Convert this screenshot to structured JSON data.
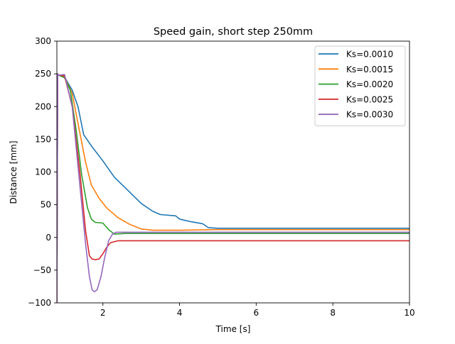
{
  "chart_data": {
    "type": "line",
    "title": "Speed gain, short step 250mm",
    "xlabel": "Time [s]",
    "ylabel": "Distance [mm]",
    "xlim": [
      0.8,
      10
    ],
    "ylim": [
      -100,
      300
    ],
    "xticks": [
      2,
      4,
      6,
      8,
      10
    ],
    "xtick_labels": [
      "2",
      "4",
      "6",
      "8",
      "10"
    ],
    "yticks": [
      -100,
      -50,
      0,
      50,
      100,
      150,
      200,
      250,
      300
    ],
    "ytick_labels": [
      "−100",
      "−50",
      "0",
      "50",
      "100",
      "150",
      "200",
      "250",
      "300"
    ],
    "grid": false,
    "legend_position": "top-right",
    "series": [
      {
        "name": "Ks=0.0010",
        "color": "#1f77b4",
        "x": [
          0.8,
          0.82,
          0.85,
          1.0,
          1.2,
          1.35,
          1.5,
          1.7,
          2.0,
          2.3,
          2.6,
          3.0,
          3.3,
          3.5,
          3.9,
          4.0,
          4.3,
          4.6,
          4.75,
          5.0,
          6.0,
          7.0,
          8.0,
          9.0,
          10.0
        ],
        "y": [
          -100,
          250,
          248,
          245,
          225,
          200,
          157,
          140,
          117,
          92,
          75,
          52,
          40,
          35,
          33,
          28,
          24,
          21,
          15,
          14,
          14,
          14,
          14,
          14,
          14
        ]
      },
      {
        "name": "Ks=0.0015",
        "color": "#ff7f0e",
        "x": [
          0.8,
          0.82,
          0.85,
          1.0,
          1.2,
          1.4,
          1.55,
          1.7,
          1.9,
          2.1,
          2.4,
          2.7,
          3.0,
          3.3,
          4.0,
          5.0,
          6.0,
          7.0,
          8.0,
          9.0,
          10.0
        ],
        "y": [
          -100,
          250,
          248,
          245,
          220,
          160,
          115,
          80,
          60,
          45,
          30,
          20,
          13,
          11,
          11,
          12,
          12,
          12,
          12,
          12,
          12
        ]
      },
      {
        "name": "Ks=0.0020",
        "color": "#2ca02c",
        "x": [
          0.8,
          0.82,
          0.85,
          1.0,
          1.15,
          1.3,
          1.45,
          1.6,
          1.7,
          1.8,
          2.0,
          2.15,
          2.3,
          2.6,
          3.0,
          4.0,
          5.0,
          6.0,
          7.0,
          8.0,
          9.0,
          10.0
        ],
        "y": [
          -100,
          250,
          248,
          244,
          225,
          165,
          95,
          45,
          28,
          23,
          22,
          12,
          5,
          6,
          6,
          6,
          6,
          6,
          6,
          6,
          6,
          6
        ]
      },
      {
        "name": "Ks=0.0025",
        "color": "#d62728",
        "x": [
          0.8,
          0.82,
          0.85,
          1.0,
          1.2,
          1.4,
          1.55,
          1.65,
          1.72,
          1.8,
          1.9,
          2.0,
          2.1,
          2.2,
          2.4,
          3.0,
          4.0,
          5.0,
          6.0,
          7.0,
          8.0,
          9.0,
          10.0
        ],
        "y": [
          -100,
          250,
          248,
          247,
          200,
          100,
          10,
          -28,
          -33,
          -34,
          -33,
          -25,
          -15,
          -8,
          -5,
          -5,
          -5,
          -5,
          -5,
          -5,
          -5,
          -5,
          -5
        ]
      },
      {
        "name": "Ks=0.0030",
        "color": "#9467bd",
        "x": [
          0.8,
          0.82,
          0.85,
          1.0,
          1.2,
          1.4,
          1.55,
          1.65,
          1.72,
          1.78,
          1.85,
          1.95,
          2.05,
          2.15,
          2.25,
          2.35,
          2.5,
          3.0,
          4.0,
          5.0,
          6.0,
          7.0,
          8.0,
          9.0,
          10.0
        ],
        "y": [
          -100,
          250,
          248,
          249,
          200,
          80,
          -10,
          -60,
          -80,
          -83,
          -80,
          -60,
          -30,
          -5,
          5,
          8,
          8,
          8,
          8,
          8,
          8,
          8,
          8,
          8,
          8
        ]
      }
    ]
  }
}
